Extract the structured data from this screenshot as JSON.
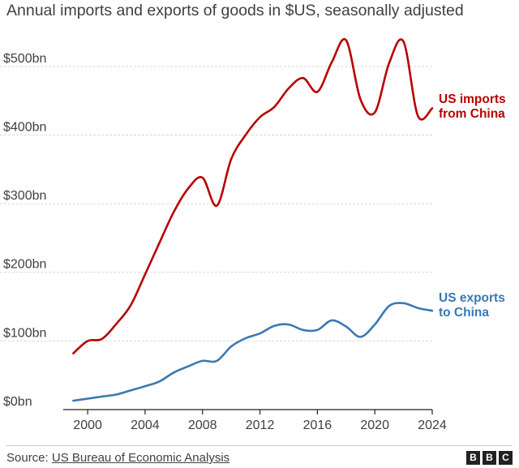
{
  "chart_data": {
    "type": "line",
    "title": "Annual imports and exports of goods in $US, seasonally adjusted",
    "xlabel": "",
    "ylabel": "",
    "xlim": [
      1998.3,
      2024
    ],
    "ylim": [
      0,
      540
    ],
    "x_ticks": [
      2000,
      2004,
      2008,
      2012,
      2016,
      2020,
      2024
    ],
    "x_tick_labels": [
      "2000",
      "2004",
      "2008",
      "2012",
      "2016",
      "2020",
      "2024"
    ],
    "y_ticks": [
      0,
      100,
      200,
      300,
      400,
      500
    ],
    "y_tick_labels": [
      "$0bn",
      "$100bn",
      "$200bn",
      "$300bn",
      "$400bn",
      "$500bn"
    ],
    "series": [
      {
        "name": "US imports from China",
        "label_lines": [
          "US imports",
          "from China"
        ],
        "color": "#b80000",
        "points": [
          [
            1999,
            82
          ],
          [
            2000,
            100
          ],
          [
            2001,
            103
          ],
          [
            2002,
            125
          ],
          [
            2003,
            152
          ],
          [
            2004,
            197
          ],
          [
            2005,
            243
          ],
          [
            2006,
            288
          ],
          [
            2007,
            322
          ],
          [
            2008,
            338
          ],
          [
            2009,
            297
          ],
          [
            2010,
            365
          ],
          [
            2011,
            400
          ],
          [
            2012,
            426
          ],
          [
            2013,
            441
          ],
          [
            2014,
            468
          ],
          [
            2015,
            483
          ],
          [
            2016,
            463
          ],
          [
            2017,
            506
          ],
          [
            2018,
            538
          ],
          [
            2019,
            452
          ],
          [
            2020,
            433
          ],
          [
            2021,
            505
          ],
          [
            2022,
            536
          ],
          [
            2023,
            428
          ],
          [
            2024,
            439
          ]
        ]
      },
      {
        "name": "US exports to China",
        "label_lines": [
          "US exports",
          "to China"
        ],
        "color": "#3a78b4",
        "points": [
          [
            1999,
            13
          ],
          [
            2000,
            16
          ],
          [
            2001,
            19
          ],
          [
            2002,
            22
          ],
          [
            2003,
            28
          ],
          [
            2004,
            34
          ],
          [
            2005,
            41
          ],
          [
            2006,
            54
          ],
          [
            2007,
            63
          ],
          [
            2008,
            71
          ],
          [
            2009,
            71
          ],
          [
            2010,
            92
          ],
          [
            2011,
            104
          ],
          [
            2012,
            111
          ],
          [
            2013,
            122
          ],
          [
            2014,
            124
          ],
          [
            2015,
            116
          ],
          [
            2016,
            116
          ],
          [
            2017,
            130
          ],
          [
            2018,
            121
          ],
          [
            2019,
            106
          ],
          [
            2020,
            124
          ],
          [
            2021,
            151
          ],
          [
            2022,
            155
          ],
          [
            2023,
            148
          ],
          [
            2024,
            144
          ]
        ]
      }
    ]
  },
  "footer": {
    "source_prefix": "Source: ",
    "source_link": "US Bureau of Economic Analysis",
    "logo_letters": [
      "B",
      "B",
      "C"
    ]
  }
}
